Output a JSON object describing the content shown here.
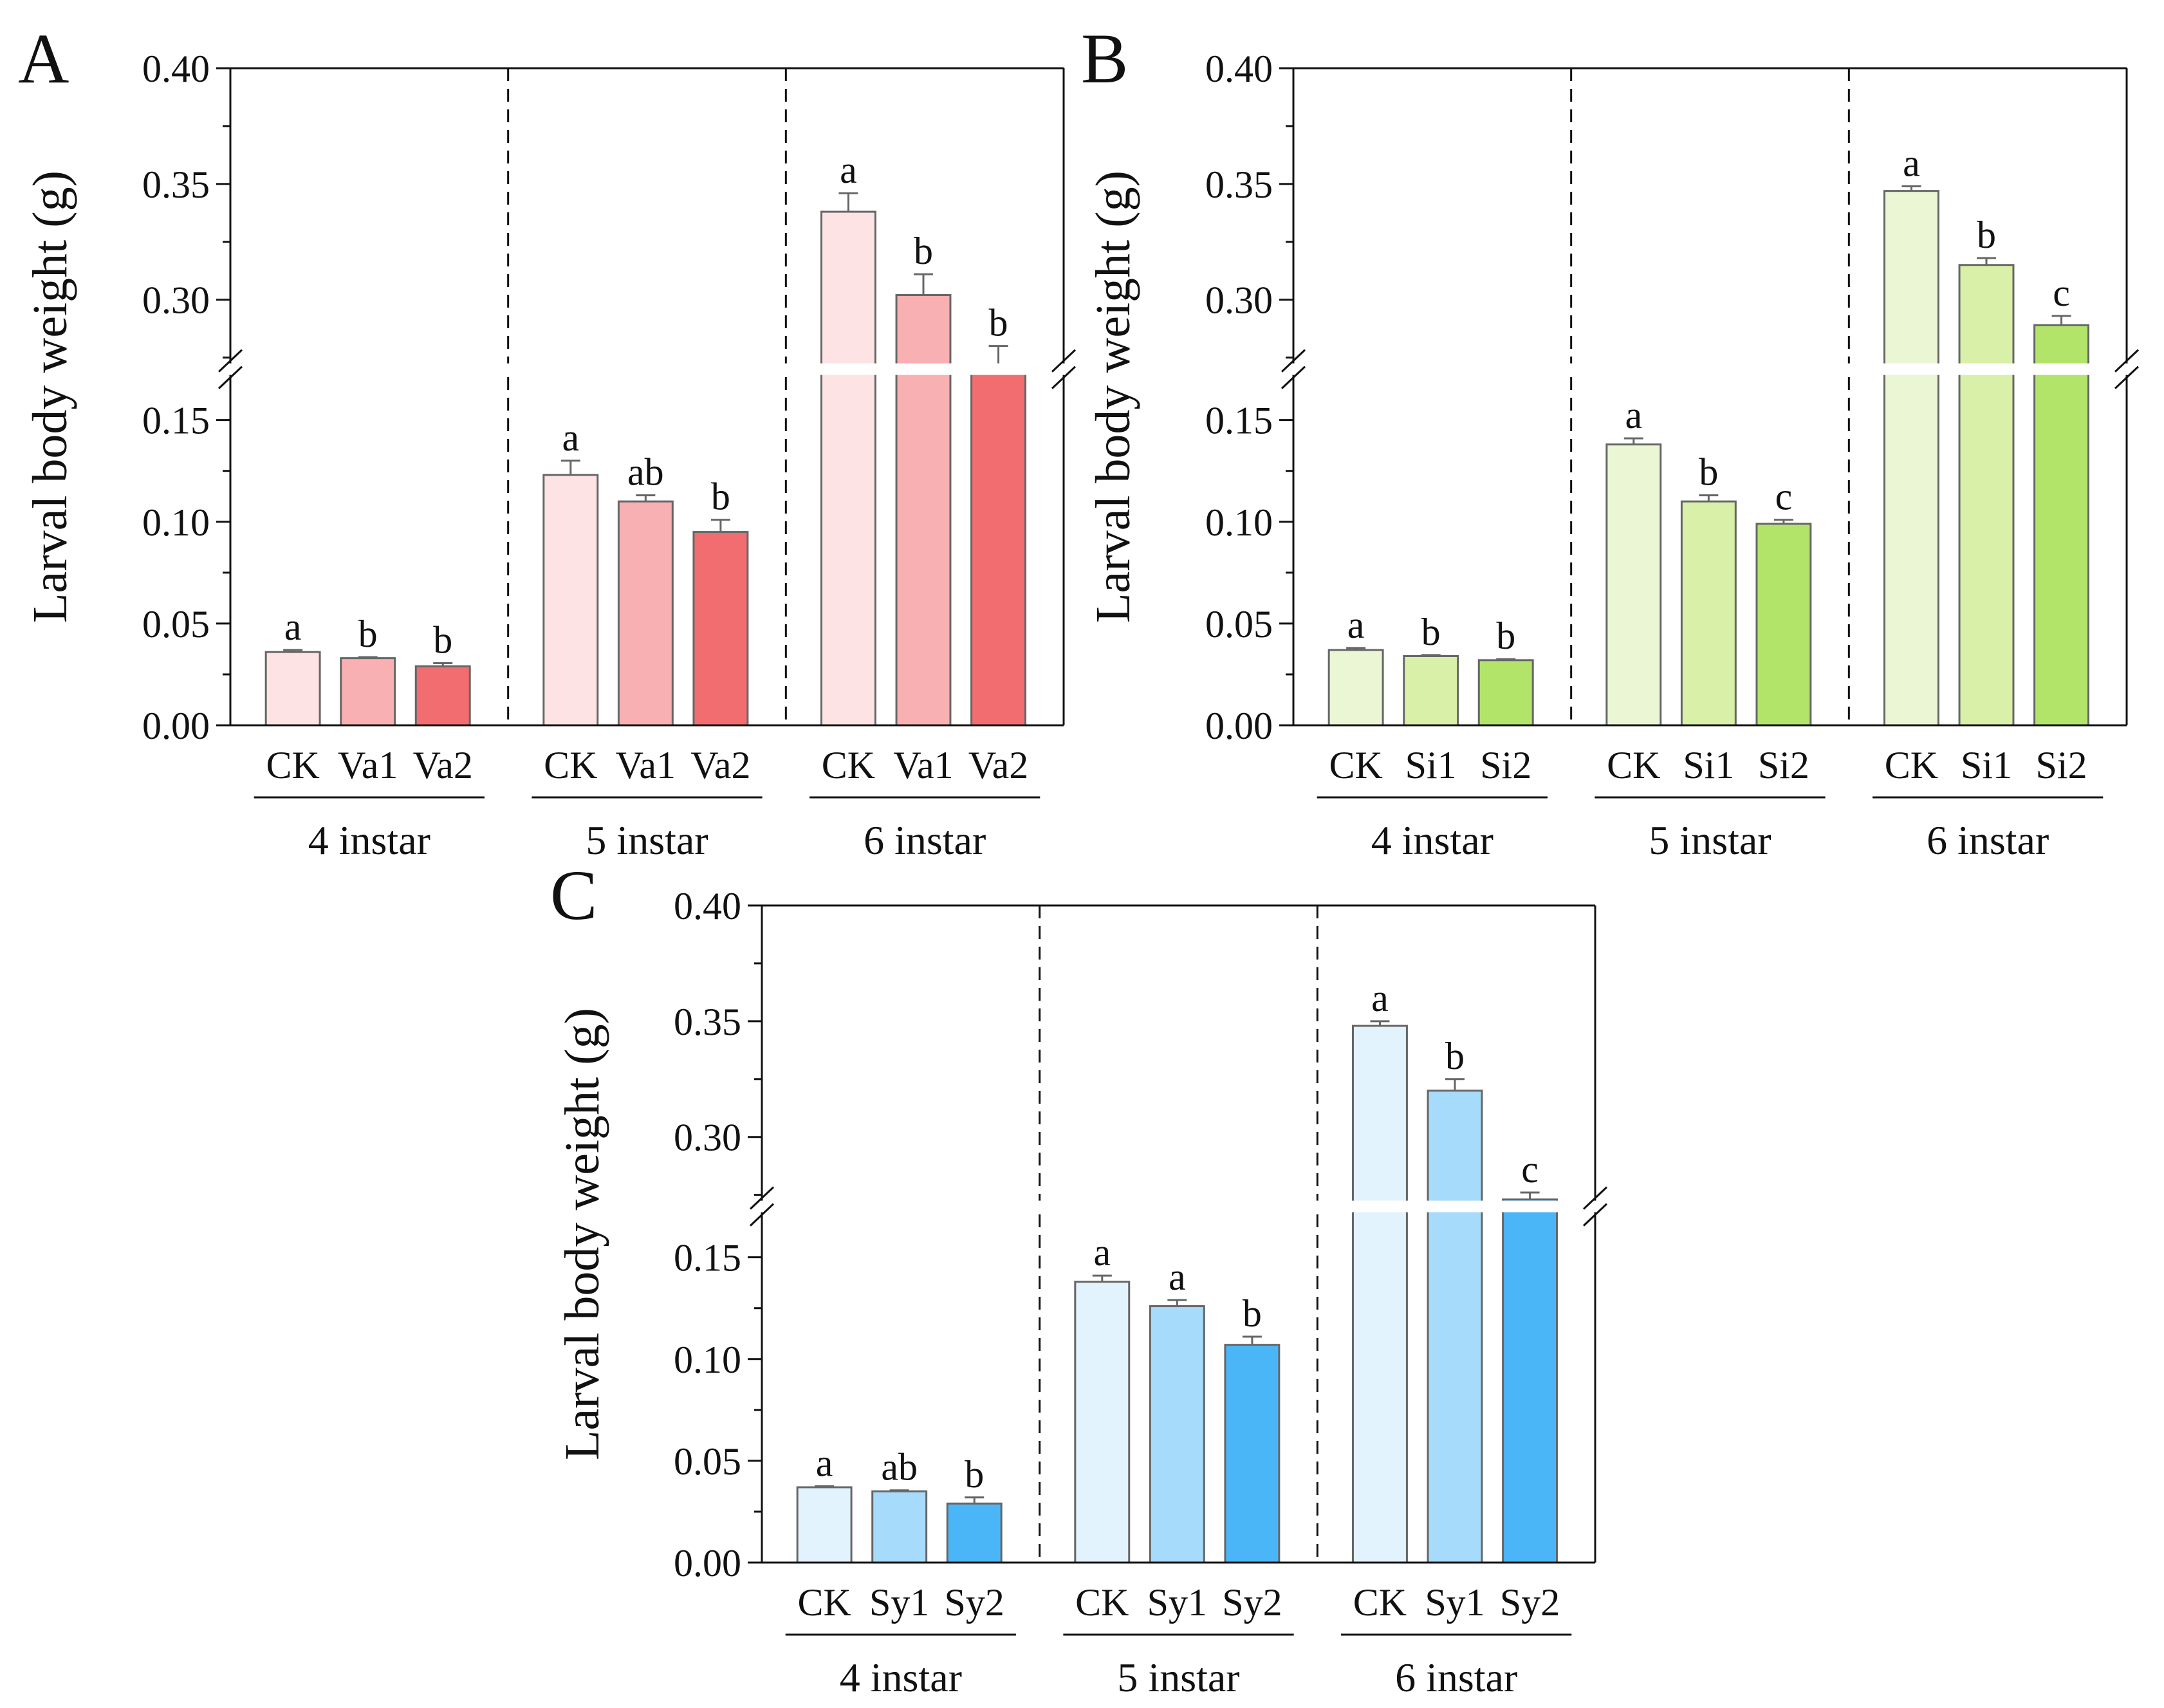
{
  "chart_data": [
    {
      "type": "bar",
      "panel_label": "A",
      "ylabel": "Larval body weight (g)",
      "axis_break": [
        0.175,
        0.27
      ],
      "ylim": [
        0,
        0.4
      ],
      "yticks_lower": [
        "0.00",
        "0.05",
        "0.10",
        "0.15"
      ],
      "yticks_upper": [
        "0.30",
        "0.35",
        "0.40"
      ],
      "groups": [
        {
          "label": "4 instar",
          "categories": [
            "CK",
            "Va1",
            "Va2"
          ],
          "values": [
            0.036,
            0.033,
            0.029
          ],
          "errors": [
            0.001,
            0.0005,
            0.0015
          ],
          "letters": [
            "a",
            "b",
            "b"
          ]
        },
        {
          "label": "5 instar",
          "categories": [
            "CK",
            "Va1",
            "Va2"
          ],
          "values": [
            0.123,
            0.11,
            0.095
          ],
          "errors": [
            0.007,
            0.003,
            0.006
          ],
          "letters": [
            "a",
            "ab",
            "b"
          ]
        },
        {
          "label": "6 instar",
          "categories": [
            "CK",
            "Va1",
            "Va2"
          ],
          "values": [
            0.338,
            0.302,
            0.268
          ],
          "errors": [
            0.008,
            0.009,
            0.012
          ],
          "letters": [
            "a",
            "b",
            "b"
          ]
        }
      ],
      "colors": [
        "#fde3e4",
        "#f8b0b2",
        "#f26d6f"
      ]
    },
    {
      "type": "bar",
      "panel_label": "B",
      "ylabel": "Larval body weight (g)",
      "axis_break": [
        0.175,
        0.27
      ],
      "ylim": [
        0,
        0.4
      ],
      "yticks_lower": [
        "0.00",
        "0.05",
        "0.10",
        "0.15"
      ],
      "yticks_upper": [
        "0.30",
        "0.35",
        "0.40"
      ],
      "groups": [
        {
          "label": "4 instar",
          "categories": [
            "CK",
            "Si1",
            "Si2"
          ],
          "values": [
            0.037,
            0.034,
            0.032
          ],
          "errors": [
            0.001,
            0.0005,
            0.0005
          ],
          "letters": [
            "a",
            "b",
            "b"
          ]
        },
        {
          "label": "5 instar",
          "categories": [
            "CK",
            "Si1",
            "Si2"
          ],
          "values": [
            0.138,
            0.11,
            0.099
          ],
          "errors": [
            0.003,
            0.003,
            0.002
          ],
          "letters": [
            "a",
            "b",
            "c"
          ]
        },
        {
          "label": "6 instar",
          "categories": [
            "CK",
            "Si1",
            "Si2"
          ],
          "values": [
            0.347,
            0.315,
            0.289
          ],
          "errors": [
            0.002,
            0.003,
            0.004
          ],
          "letters": [
            "a",
            "b",
            "c"
          ]
        }
      ],
      "colors": [
        "#ebf6d5",
        "#d8f0a8",
        "#b2e46a"
      ]
    },
    {
      "type": "bar",
      "panel_label": "C",
      "ylabel": "Larval body weight (g)",
      "axis_break": [
        0.175,
        0.27
      ],
      "ylim": [
        0,
        0.4
      ],
      "yticks_lower": [
        "0.00",
        "0.05",
        "0.10",
        "0.15"
      ],
      "yticks_upper": [
        "0.30",
        "0.35",
        "0.40"
      ],
      "groups": [
        {
          "label": "4 instar",
          "categories": [
            "CK",
            "Sy1",
            "Sy2"
          ],
          "values": [
            0.037,
            0.035,
            0.029
          ],
          "errors": [
            0.0005,
            0.0005,
            0.003
          ],
          "letters": [
            "a",
            "ab",
            "b"
          ]
        },
        {
          "label": "5 instar",
          "categories": [
            "CK",
            "Sy1",
            "Sy2"
          ],
          "values": [
            0.138,
            0.126,
            0.107
          ],
          "errors": [
            0.003,
            0.003,
            0.004
          ],
          "letters": [
            "a",
            "a",
            "b"
          ]
        },
        {
          "label": "6 instar",
          "categories": [
            "CK",
            "Sy1",
            "Sy2"
          ],
          "values": [
            0.348,
            0.32,
            0.273
          ],
          "errors": [
            0.002,
            0.005,
            0.003
          ],
          "letters": [
            "a",
            "b",
            "c"
          ]
        }
      ],
      "colors": [
        "#e2f3fd",
        "#a6dbfb",
        "#4bb6f7"
      ]
    }
  ]
}
